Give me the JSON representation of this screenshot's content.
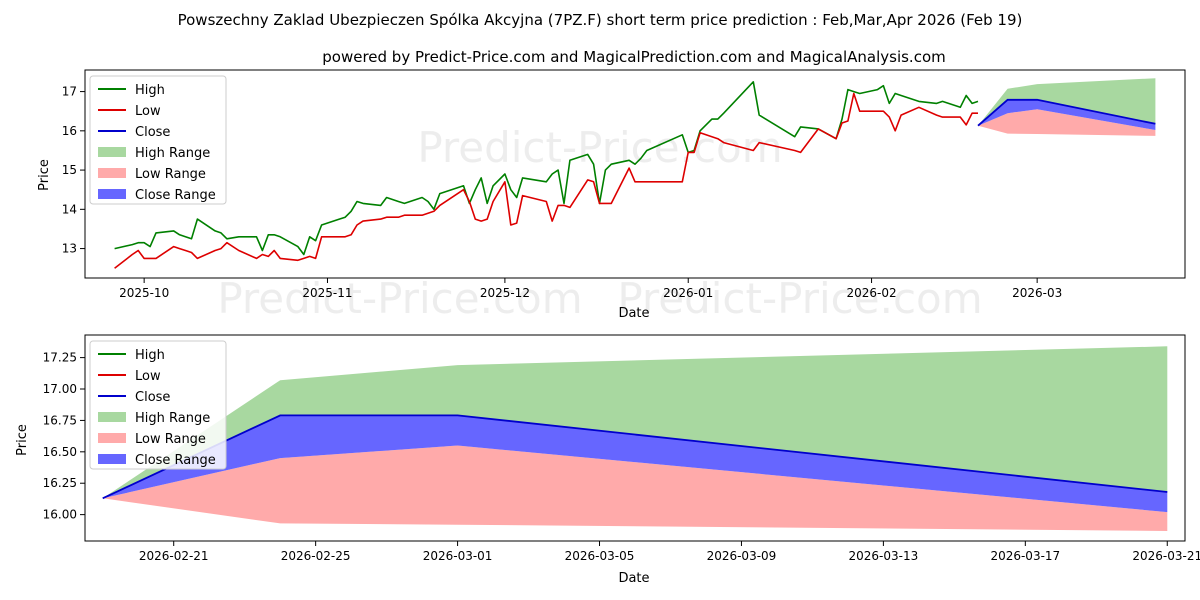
{
  "title": "Powszechny Zaklad Ubezpieczen Spólka Akcyjna (7PZ.F) short term price prediction : Feb,Mar,Apr 2026 (Feb 19)",
  "subtitle": "powered by Predict-Price.com and MagicalPrediction.com and MagicalAnalysis.com",
  "watermark": "Predict-Price.com",
  "colors": {
    "high": "#008000",
    "low": "#dd0000",
    "close": "#0000cc",
    "high_range": "#a8d8a0",
    "low_range": "#ffaaaa",
    "close_range": "#6666ff"
  },
  "chart_data": [
    {
      "type": "line",
      "xlabel": "Date",
      "ylabel": "Price",
      "xlim": [
        "2025-09-21",
        "2026-03-26"
      ],
      "ylim": [
        12.25,
        17.55
      ],
      "x_ticks": [
        "2025-10-01",
        "2025-11-01",
        "2025-12-01",
        "2026-01-01",
        "2026-02-01",
        "2026-03-01"
      ],
      "x_tick_labels": [
        "2025-10",
        "2025-11",
        "2025-12",
        "2026-01",
        "2026-02",
        "2026-03"
      ],
      "y_ticks": [
        13,
        14,
        15,
        16,
        17
      ],
      "y_tick_labels": [
        "13",
        "14",
        "15",
        "16",
        "17"
      ],
      "legend": [
        "High",
        "Low",
        "Close",
        "High Range",
        "Low Range",
        "Close Range"
      ],
      "legend_position": "upper-left",
      "series": [
        {
          "name": "High",
          "points": [
            [
              "2025-09-26",
              13.0
            ],
            [
              "2025-09-29",
              13.1
            ],
            [
              "2025-09-30",
              13.15
            ],
            [
              "2025-10-01",
              13.15
            ],
            [
              "2025-10-02",
              13.05
            ],
            [
              "2025-10-03",
              13.4
            ],
            [
              "2025-10-06",
              13.45
            ],
            [
              "2025-10-07",
              13.35
            ],
            [
              "2025-10-08",
              13.3
            ],
            [
              "2025-10-09",
              13.25
            ],
            [
              "2025-10-10",
              13.75
            ],
            [
              "2025-10-13",
              13.45
            ],
            [
              "2025-10-14",
              13.4
            ],
            [
              "2025-10-15",
              13.25
            ],
            [
              "2025-10-17",
              13.3
            ],
            [
              "2025-10-20",
              13.3
            ],
            [
              "2025-10-21",
              12.95
            ],
            [
              "2025-10-22",
              13.35
            ],
            [
              "2025-10-23",
              13.35
            ],
            [
              "2025-10-24",
              13.3
            ],
            [
              "2025-10-27",
              13.05
            ],
            [
              "2025-10-28",
              12.85
            ],
            [
              "2025-10-29",
              13.3
            ],
            [
              "2025-10-30",
              13.2
            ],
            [
              "2025-10-31",
              13.6
            ],
            [
              "2025-11-03",
              13.75
            ],
            [
              "2025-11-04",
              13.8
            ],
            [
              "2025-11-05",
              13.95
            ],
            [
              "2025-11-06",
              14.2
            ],
            [
              "2025-11-07",
              14.15
            ],
            [
              "2025-11-10",
              14.1
            ],
            [
              "2025-11-11",
              14.3
            ],
            [
              "2025-11-13",
              14.2
            ],
            [
              "2025-11-14",
              14.15
            ],
            [
              "2025-11-17",
              14.3
            ],
            [
              "2025-11-18",
              14.2
            ],
            [
              "2025-11-19",
              14.0
            ],
            [
              "2025-11-20",
              14.4
            ],
            [
              "2025-11-24",
              14.6
            ],
            [
              "2025-11-25",
              14.15
            ],
            [
              "2025-11-26",
              14.5
            ],
            [
              "2025-11-27",
              14.8
            ],
            [
              "2025-11-28",
              14.15
            ],
            [
              "2025-11-29",
              14.6
            ],
            [
              "2025-12-01",
              14.9
            ],
            [
              "2025-12-02",
              14.5
            ],
            [
              "2025-12-03",
              14.3
            ],
            [
              "2025-12-04",
              14.8
            ],
            [
              "2025-12-08",
              14.7
            ],
            [
              "2025-12-09",
              14.9
            ],
            [
              "2025-12-10",
              15.0
            ],
            [
              "2025-12-11",
              14.15
            ],
            [
              "2025-12-12",
              15.25
            ],
            [
              "2025-12-15",
              15.4
            ],
            [
              "2025-12-16",
              15.15
            ],
            [
              "2025-12-17",
              14.15
            ],
            [
              "2025-12-18",
              15.0
            ],
            [
              "2025-12-19",
              15.15
            ],
            [
              "2025-12-22",
              15.25
            ],
            [
              "2025-12-23",
              15.15
            ],
            [
              "2025-12-24",
              15.3
            ],
            [
              "2025-12-25",
              15.5
            ],
            [
              "2025-12-31",
              15.9
            ],
            [
              "2026-01-01",
              15.45
            ],
            [
              "2026-01-02",
              15.5
            ],
            [
              "2026-01-03",
              16.0
            ],
            [
              "2026-01-05",
              16.3
            ],
            [
              "2026-01-06",
              16.3
            ],
            [
              "2026-01-07",
              16.45
            ],
            [
              "2026-01-12",
              17.25
            ],
            [
              "2026-01-13",
              16.4
            ],
            [
              "2026-01-19",
              15.85
            ],
            [
              "2026-01-20",
              16.1
            ],
            [
              "2026-01-23",
              16.05
            ],
            [
              "2026-01-26",
              15.8
            ],
            [
              "2026-01-27",
              16.3
            ],
            [
              "2026-01-28",
              17.05
            ],
            [
              "2026-01-29",
              17.0
            ],
            [
              "2026-01-30",
              16.95
            ],
            [
              "2026-02-02",
              17.05
            ],
            [
              "2026-02-03",
              17.15
            ],
            [
              "2026-02-04",
              16.7
            ],
            [
              "2026-02-05",
              16.95
            ],
            [
              "2026-02-06",
              16.9
            ],
            [
              "2026-02-09",
              16.75
            ],
            [
              "2026-02-12",
              16.7
            ],
            [
              "2026-02-13",
              16.75
            ],
            [
              "2026-02-16",
              16.6
            ],
            [
              "2026-02-17",
              16.9
            ],
            [
              "2026-02-18",
              16.7
            ],
            [
              "2026-02-19",
              16.75
            ]
          ]
        },
        {
          "name": "Low",
          "points": [
            [
              "2025-09-26",
              12.5
            ],
            [
              "2025-09-29",
              12.85
            ],
            [
              "2025-09-30",
              12.95
            ],
            [
              "2025-10-01",
              12.75
            ],
            [
              "2025-10-02",
              12.75
            ],
            [
              "2025-10-03",
              12.75
            ],
            [
              "2025-10-06",
              13.05
            ],
            [
              "2025-10-07",
              13.0
            ],
            [
              "2025-10-08",
              12.95
            ],
            [
              "2025-10-09",
              12.9
            ],
            [
              "2025-10-10",
              12.75
            ],
            [
              "2025-10-13",
              12.95
            ],
            [
              "2025-10-14",
              13.0
            ],
            [
              "2025-10-15",
              13.15
            ],
            [
              "2025-10-17",
              12.95
            ],
            [
              "2025-10-20",
              12.75
            ],
            [
              "2025-10-21",
              12.85
            ],
            [
              "2025-10-22",
              12.8
            ],
            [
              "2025-10-23",
              12.95
            ],
            [
              "2025-10-24",
              12.75
            ],
            [
              "2025-10-27",
              12.7
            ],
            [
              "2025-10-28",
              12.75
            ],
            [
              "2025-10-29",
              12.8
            ],
            [
              "2025-10-30",
              12.75
            ],
            [
              "2025-10-31",
              13.3
            ],
            [
              "2025-11-03",
              13.3
            ],
            [
              "2025-11-04",
              13.3
            ],
            [
              "2025-11-05",
              13.35
            ],
            [
              "2025-11-06",
              13.6
            ],
            [
              "2025-11-07",
              13.7
            ],
            [
              "2025-11-10",
              13.75
            ],
            [
              "2025-11-11",
              13.8
            ],
            [
              "2025-11-13",
              13.8
            ],
            [
              "2025-11-14",
              13.85
            ],
            [
              "2025-11-17",
              13.85
            ],
            [
              "2025-11-18",
              13.9
            ],
            [
              "2025-11-19",
              13.95
            ],
            [
              "2025-11-20",
              14.1
            ],
            [
              "2025-11-24",
              14.5
            ],
            [
              "2025-11-25",
              14.2
            ],
            [
              "2025-11-26",
              13.75
            ],
            [
              "2025-11-27",
              13.7
            ],
            [
              "2025-11-28",
              13.75
            ],
            [
              "2025-11-29",
              14.2
            ],
            [
              "2025-12-01",
              14.7
            ],
            [
              "2025-12-02",
              13.6
            ],
            [
              "2025-12-03",
              13.65
            ],
            [
              "2025-12-04",
              14.35
            ],
            [
              "2025-12-08",
              14.2
            ],
            [
              "2025-12-09",
              13.7
            ],
            [
              "2025-12-10",
              14.1
            ],
            [
              "2025-12-11",
              14.1
            ],
            [
              "2025-12-12",
              14.05
            ],
            [
              "2025-12-15",
              14.75
            ],
            [
              "2025-12-16",
              14.7
            ],
            [
              "2025-12-17",
              14.15
            ],
            [
              "2025-12-18",
              14.15
            ],
            [
              "2025-12-19",
              14.15
            ],
            [
              "2025-12-22",
              15.05
            ],
            [
              "2025-12-23",
              14.7
            ],
            [
              "2025-12-24",
              14.7
            ],
            [
              "2025-12-25",
              14.7
            ],
            [
              "2025-12-31",
              14.7
            ],
            [
              "2026-01-01",
              15.45
            ],
            [
              "2026-01-02",
              15.45
            ],
            [
              "2026-01-03",
              15.95
            ],
            [
              "2026-01-05",
              15.85
            ],
            [
              "2026-01-06",
              15.8
            ],
            [
              "2026-01-07",
              15.7
            ],
            [
              "2026-01-12",
              15.5
            ],
            [
              "2026-01-13",
              15.7
            ],
            [
              "2026-01-19",
              15.5
            ],
            [
              "2026-01-20",
              15.45
            ],
            [
              "2026-01-23",
              16.05
            ],
            [
              "2026-01-26",
              15.8
            ],
            [
              "2026-01-27",
              16.2
            ],
            [
              "2026-01-28",
              16.25
            ],
            [
              "2026-01-29",
              16.95
            ],
            [
              "2026-01-30",
              16.5
            ],
            [
              "2026-02-02",
              16.5
            ],
            [
              "2026-02-03",
              16.5
            ],
            [
              "2026-02-04",
              16.35
            ],
            [
              "2026-02-05",
              16.0
            ],
            [
              "2026-02-06",
              16.4
            ],
            [
              "2026-02-09",
              16.6
            ],
            [
              "2026-02-12",
              16.4
            ],
            [
              "2026-02-13",
              16.35
            ],
            [
              "2026-02-16",
              16.35
            ],
            [
              "2026-02-17",
              16.15
            ],
            [
              "2026-02-18",
              16.45
            ],
            [
              "2026-02-19",
              16.45
            ]
          ]
        }
      ]
    },
    {
      "type": "area",
      "xlabel": "Date",
      "ylabel": "Price",
      "xlim": [
        "2026-02-18T12:00",
        "2026-03-21T12:00"
      ],
      "ylim": [
        15.79,
        17.43
      ],
      "x_ticks": [
        "2026-02-21",
        "2026-02-25",
        "2026-03-01",
        "2026-03-05",
        "2026-03-09",
        "2026-03-13",
        "2026-03-17",
        "2026-03-21"
      ],
      "y_ticks": [
        16.0,
        16.25,
        16.5,
        16.75,
        17.0,
        17.25
      ],
      "y_tick_labels": [
        "16.00",
        "16.25",
        "16.50",
        "16.75",
        "17.00",
        "17.25"
      ],
      "legend": [
        "High",
        "Low",
        "Close",
        "High Range",
        "Low Range",
        "Close Range"
      ],
      "legend_position": "upper-left",
      "series": [
        {
          "name": "High Range Upper",
          "points": [
            [
              "2026-02-19",
              16.13
            ],
            [
              "2026-02-24",
              17.07
            ],
            [
              "2026-03-01",
              17.19
            ],
            [
              "2026-03-21",
              17.34
            ]
          ]
        },
        {
          "name": "Low Range Lower",
          "points": [
            [
              "2026-02-19",
              16.13
            ],
            [
              "2026-02-24",
              15.93
            ],
            [
              "2026-03-01",
              15.92
            ],
            [
              "2026-03-21",
              15.87
            ]
          ]
        },
        {
          "name": "Close Upper",
          "points": [
            [
              "2026-02-19",
              16.13
            ],
            [
              "2026-02-24",
              16.79
            ],
            [
              "2026-03-01",
              16.79
            ],
            [
              "2026-03-21",
              16.18
            ]
          ]
        },
        {
          "name": "Close Lower",
          "points": [
            [
              "2026-02-19",
              16.13
            ],
            [
              "2026-02-24",
              16.45
            ],
            [
              "2026-03-01",
              16.55
            ],
            [
              "2026-03-21",
              16.02
            ]
          ]
        }
      ]
    }
  ]
}
